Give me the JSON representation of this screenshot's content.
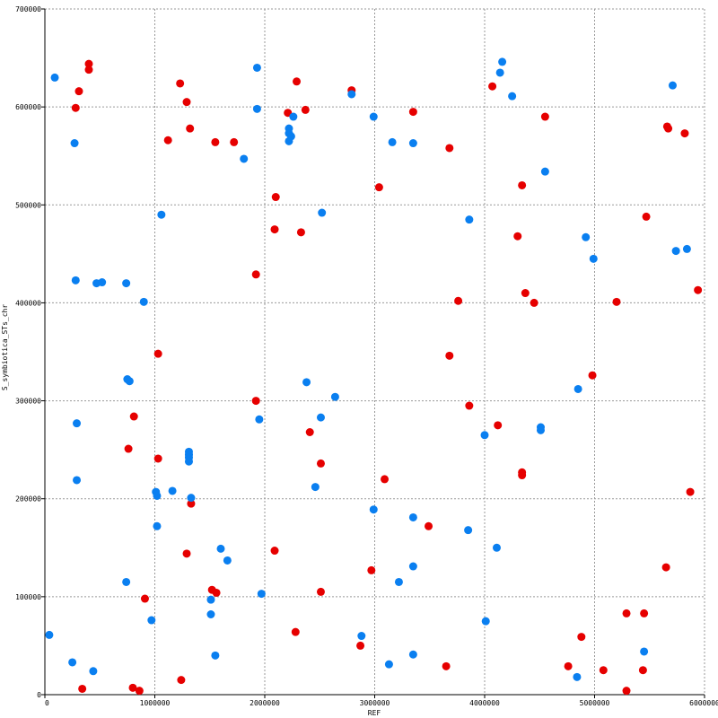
{
  "chart_data": {
    "type": "scatter",
    "xlabel": "REF",
    "ylabel": "S_symbiotica_STs_chr",
    "xlim": [
      0,
      6000000
    ],
    "ylim": [
      0,
      700000
    ],
    "grid": true,
    "x_ticks": [
      "0",
      "1000000",
      "2000000",
      "3000000",
      "4000000",
      "5000000",
      "6000000"
    ],
    "y_ticks": [
      "0",
      "100000",
      "200000",
      "300000",
      "400000",
      "500000",
      "600000",
      "700000"
    ],
    "colors": {
      "red": "#e60000",
      "blue": "#0a7ff0",
      "grid": "#999999"
    },
    "series": [
      {
        "color": "red",
        "points": [
          [
            400000,
            644000
          ],
          [
            400000,
            638000
          ],
          [
            310000,
            616000
          ],
          [
            280000,
            599000
          ],
          [
            340000,
            6000
          ],
          [
            1230000,
            624000
          ],
          [
            1290000,
            605000
          ],
          [
            1320000,
            578000
          ],
          [
            1120000,
            566000
          ],
          [
            1550000,
            564000
          ],
          [
            1720000,
            564000
          ],
          [
            2290000,
            626000
          ],
          [
            2210000,
            594000
          ],
          [
            2370000,
            597000
          ],
          [
            2790000,
            617000
          ],
          [
            3350000,
            595000
          ],
          [
            3680000,
            558000
          ],
          [
            4070000,
            621000
          ],
          [
            4550000,
            590000
          ],
          [
            5660000,
            580000
          ],
          [
            5670000,
            578000
          ],
          [
            5820000,
            573000
          ],
          [
            2100000,
            508000
          ],
          [
            2090000,
            475000
          ],
          [
            2330000,
            472000
          ],
          [
            3040000,
            518000
          ],
          [
            4340000,
            520000
          ],
          [
            4300000,
            468000
          ],
          [
            5470000,
            488000
          ],
          [
            1920000,
            429000
          ],
          [
            3760000,
            402000
          ],
          [
            4370000,
            410000
          ],
          [
            4450000,
            400000
          ],
          [
            5200000,
            401000
          ],
          [
            5940000,
            413000
          ],
          [
            1030000,
            348000
          ],
          [
            3680000,
            346000
          ],
          [
            4980000,
            326000
          ],
          [
            1920000,
            300000
          ],
          [
            3860000,
            295000
          ],
          [
            810000,
            284000
          ],
          [
            760000,
            251000
          ],
          [
            1030000,
            241000
          ],
          [
            2410000,
            268000
          ],
          [
            2510000,
            236000
          ],
          [
            3090000,
            220000
          ],
          [
            4120000,
            275000
          ],
          [
            4340000,
            227000
          ],
          [
            4340000,
            224000
          ],
          [
            5870000,
            207000
          ],
          [
            1330000,
            195000
          ],
          [
            1290000,
            144000
          ],
          [
            2090000,
            147000
          ],
          [
            3490000,
            172000
          ],
          [
            2970000,
            127000
          ],
          [
            5650000,
            130000
          ],
          [
            910000,
            98000
          ],
          [
            1520000,
            107000
          ],
          [
            1560000,
            104000
          ],
          [
            2510000,
            105000
          ],
          [
            2280000,
            64000
          ],
          [
            2870000,
            50000
          ],
          [
            4880000,
            59000
          ],
          [
            5290000,
            83000
          ],
          [
            5450000,
            83000
          ],
          [
            800000,
            7000
          ],
          [
            860000,
            4000
          ],
          [
            1240000,
            15000
          ],
          [
            3650000,
            29000
          ],
          [
            4760000,
            29000
          ],
          [
            5080000,
            25000
          ],
          [
            5440000,
            25000
          ],
          [
            5290000,
            4000
          ]
        ]
      },
      {
        "color": "blue",
        "points": [
          [
            90000,
            630000
          ],
          [
            270000,
            563000
          ],
          [
            1930000,
            640000
          ],
          [
            1930000,
            598000
          ],
          [
            1810000,
            547000
          ],
          [
            2220000,
            578000
          ],
          [
            2220000,
            573000
          ],
          [
            2240000,
            570000
          ],
          [
            2220000,
            565000
          ],
          [
            2260000,
            590000
          ],
          [
            2790000,
            613000
          ],
          [
            2990000,
            590000
          ],
          [
            3160000,
            564000
          ],
          [
            3350000,
            563000
          ],
          [
            4140000,
            635000
          ],
          [
            4160000,
            646000
          ],
          [
            4250000,
            611000
          ],
          [
            5710000,
            622000
          ],
          [
            4550000,
            534000
          ],
          [
            1060000,
            490000
          ],
          [
            2520000,
            492000
          ],
          [
            3860000,
            485000
          ],
          [
            4920000,
            467000
          ],
          [
            4990000,
            445000
          ],
          [
            5740000,
            453000
          ],
          [
            5840000,
            455000
          ],
          [
            280000,
            423000
          ],
          [
            470000,
            420000
          ],
          [
            520000,
            421000
          ],
          [
            740000,
            420000
          ],
          [
            900000,
            401000
          ],
          [
            750000,
            322000
          ],
          [
            770000,
            320000
          ],
          [
            2380000,
            319000
          ],
          [
            2640000,
            304000
          ],
          [
            4850000,
            312000
          ],
          [
            290000,
            277000
          ],
          [
            1950000,
            281000
          ],
          [
            2510000,
            283000
          ],
          [
            4000000,
            265000
          ],
          [
            4510000,
            273000
          ],
          [
            4510000,
            270000
          ],
          [
            290000,
            219000
          ],
          [
            1310000,
            248000
          ],
          [
            1310000,
            245000
          ],
          [
            1310000,
            242000
          ],
          [
            1310000,
            238000
          ],
          [
            1010000,
            207000
          ],
          [
            1020000,
            203000
          ],
          [
            1160000,
            208000
          ],
          [
            1330000,
            201000
          ],
          [
            2460000,
            212000
          ],
          [
            2990000,
            189000
          ],
          [
            1020000,
            172000
          ],
          [
            1600000,
            149000
          ],
          [
            1660000,
            137000
          ],
          [
            3350000,
            181000
          ],
          [
            3850000,
            168000
          ],
          [
            4110000,
            150000
          ],
          [
            740000,
            115000
          ],
          [
            970000,
            76000
          ],
          [
            1510000,
            97000
          ],
          [
            1510000,
            82000
          ],
          [
            1970000,
            103000
          ],
          [
            3220000,
            115000
          ],
          [
            3350000,
            131000
          ],
          [
            4010000,
            75000
          ],
          [
            40000,
            61000
          ],
          [
            250000,
            33000
          ],
          [
            440000,
            24000
          ],
          [
            1550000,
            40000
          ],
          [
            2880000,
            60000
          ],
          [
            3130000,
            31000
          ],
          [
            3350000,
            41000
          ],
          [
            4840000,
            18000
          ],
          [
            5450000,
            44000
          ]
        ]
      }
    ]
  }
}
